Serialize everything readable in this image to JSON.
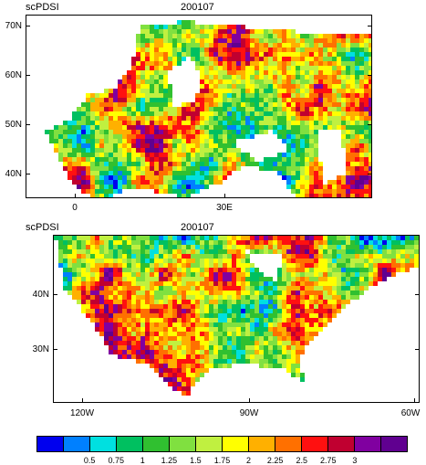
{
  "panels": [
    {
      "variable": "scPDSI",
      "date": "200107",
      "lat_labels": [
        "70N",
        "60N",
        "50N",
        "40N"
      ],
      "lon_labels": [
        "0",
        "30E"
      ]
    },
    {
      "variable": "scPDSI",
      "date": "200107",
      "lat_labels": [
        "40N",
        "30N"
      ],
      "lon_labels": [
        "120W",
        "90W",
        "60W"
      ]
    }
  ],
  "colorbar": {
    "colors": [
      "#0000ee",
      "#0080ff",
      "#00e0e0",
      "#00c060",
      "#30c030",
      "#80e040",
      "#c0f040",
      "#ffff00",
      "#ffb000",
      "#ff7000",
      "#ff1010",
      "#c00030",
      "#8000a0",
      "#600090"
    ],
    "labels": [
      "0.5",
      "0.75",
      "1",
      "1.25",
      "1.5",
      "1.75",
      "2",
      "2.25",
      "2.5",
      "2.75",
      "3"
    ]
  },
  "ocean_color": "#ffffff",
  "land_nodata_color": "#ffffff"
}
